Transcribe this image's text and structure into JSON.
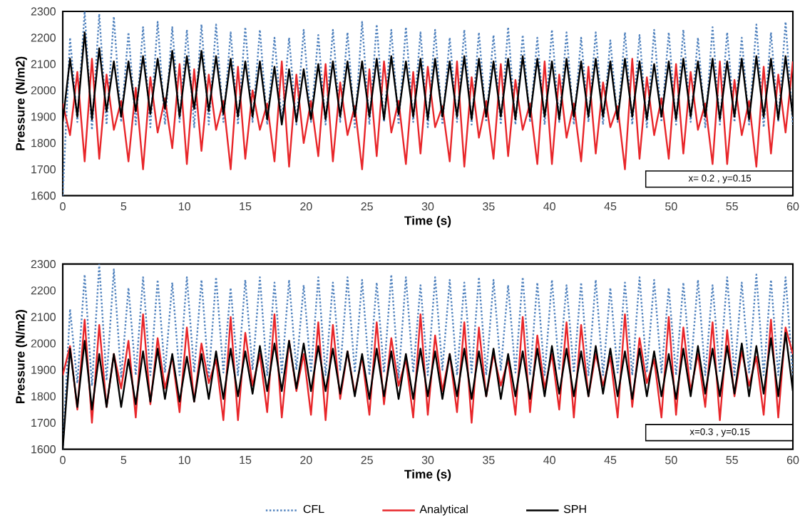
{
  "chart_data": [
    {
      "type": "line",
      "xlabel": "Time (s)",
      "ylabel": "Pressure (N/m2)",
      "annotations": [
        "x= 0.2 , y=0.15"
      ],
      "xlim": [
        0,
        60
      ],
      "ylim": [
        1600,
        2300
      ],
      "xticks": [
        0,
        5,
        10,
        15,
        20,
        25,
        30,
        35,
        40,
        45,
        50,
        55,
        60
      ],
      "yticks": [
        1600,
        1700,
        1800,
        1900,
        2000,
        2100,
        2200,
        2300
      ],
      "grid": false,
      "marker": "none",
      "x": [
        0,
        0.6,
        1.2,
        1.8,
        2.4,
        3,
        3.6,
        4.2,
        4.8,
        5.4,
        6,
        6.6,
        7.2,
        7.8,
        8.4,
        9,
        9.6,
        10.2,
        10.8,
        11.4,
        12,
        12.6,
        13.2,
        13.8,
        14.4,
        15,
        15.6,
        16.2,
        16.8,
        17.4,
        18,
        18.6,
        19.2,
        19.8,
        20.4,
        21,
        21.6,
        22.2,
        22.8,
        23.4,
        24,
        24.6,
        25.2,
        25.8,
        26.4,
        27,
        27.6,
        28.2,
        28.8,
        29.4,
        30,
        30.6,
        31.2,
        31.8,
        32.4,
        33,
        33.6,
        34.2,
        34.8,
        35.4,
        36,
        36.6,
        37.2,
        37.8,
        38.4,
        39,
        39.6,
        40.2,
        40.8,
        41.4,
        42,
        42.6,
        43.2,
        43.8,
        44.4,
        45,
        45.6,
        46.2,
        46.8,
        47.4,
        48,
        48.6,
        49.2,
        49.8,
        50.4,
        51,
        51.6,
        52.2,
        52.8,
        53.4,
        54,
        54.6,
        55.2,
        55.8,
        56.4,
        57,
        57.6,
        58.2,
        58.8,
        59.4,
        60
      ],
      "series": [
        {
          "color": "#4f81bd",
          "line_style": "dotted",
          "values": [
            1600,
            2200,
            1880,
            2300,
            1850,
            2290,
            1870,
            2280,
            1880,
            2220,
            1870,
            2240,
            1860,
            2260,
            1870,
            2240,
            1880,
            2230,
            1860,
            2250,
            1870,
            2250,
            1880,
            2220,
            1870,
            2240,
            1880,
            2230,
            1870,
            2200,
            1880,
            2200,
            1870,
            2230,
            1880,
            2210,
            1870,
            2230,
            1880,
            2220,
            1860,
            2260,
            1870,
            2250,
            1880,
            2230,
            1870,
            2240,
            1880,
            2220,
            1860,
            2230,
            1870,
            2200,
            1880,
            2230,
            1870,
            2220,
            1880,
            2210,
            1870,
            2240,
            1870,
            2210,
            1880,
            2200,
            1870,
            2230,
            1880,
            2220,
            1870,
            2200,
            1880,
            2220,
            1870,
            2190,
            1880,
            2220,
            1870,
            2210,
            1860,
            2230,
            1880,
            2220,
            1870,
            2230,
            1880,
            2200,
            1860,
            2240,
            1870,
            2220,
            1880,
            2200,
            1870,
            2250,
            1860,
            2220,
            1880,
            2260,
            1870
          ]
        },
        {
          "color": "#e8262a",
          "line_style": "solid",
          "values": [
            1950,
            1830,
            2070,
            1730,
            2120,
            1740,
            2060,
            1850,
            1960,
            1730,
            2010,
            1700,
            2050,
            1840,
            1970,
            1780,
            2100,
            1720,
            2080,
            1770,
            2060,
            1850,
            1960,
            1700,
            2090,
            1740,
            2000,
            1850,
            1950,
            1730,
            2110,
            1710,
            2060,
            1800,
            1960,
            1750,
            2100,
            1730,
            2030,
            1830,
            1940,
            1700,
            2080,
            1750,
            2110,
            1840,
            1960,
            1720,
            2070,
            1760,
            2090,
            1860,
            1940,
            1730,
            2110,
            1710,
            2050,
            1820,
            1960,
            1740,
            2100,
            1750,
            2040,
            1850,
            1950,
            1720,
            2110,
            1720,
            2060,
            1820,
            1950,
            1730,
            2090,
            1760,
            2030,
            1860,
            1940,
            1700,
            2120,
            1740,
            2050,
            1830,
            1970,
            1740,
            2100,
            1760,
            2070,
            1850,
            1950,
            1720,
            2110,
            1720,
            2040,
            1830,
            1960,
            1710,
            2090,
            1760,
            2060,
            1840,
            2110
          ]
        },
        {
          "color": "#000000",
          "line_style": "solid",
          "values": [
            1880,
            2120,
            1900,
            2220,
            1890,
            2160,
            1920,
            2110,
            1900,
            2110,
            1920,
            2130,
            1910,
            2120,
            1930,
            2150,
            1900,
            2130,
            1930,
            2150,
            1920,
            2130,
            1910,
            2120,
            1900,
            2110,
            1900,
            2110,
            1890,
            2090,
            1870,
            2080,
            1880,
            2080,
            1890,
            2100,
            1890,
            2110,
            1900,
            2110,
            1900,
            2110,
            1900,
            2120,
            1890,
            2130,
            1910,
            2110,
            1900,
            2120,
            1890,
            2120,
            1900,
            2110,
            1900,
            2130,
            1890,
            2120,
            1900,
            2110,
            1900,
            2120,
            1890,
            2130,
            1900,
            2120,
            1900,
            2110,
            1890,
            2120,
            1900,
            2110,
            1900,
            2120,
            1900,
            2110,
            1890,
            2120,
            1900,
            2110,
            1890,
            2100,
            1900,
            2110,
            1890,
            2120,
            1900,
            2110,
            1900,
            2120,
            1890,
            2110,
            1900,
            2120,
            1890,
            2130,
            1900,
            2120,
            1890,
            2130,
            1900
          ]
        }
      ]
    },
    {
      "type": "line",
      "xlabel": "Time (s)",
      "ylabel": "Pressure (N/m2)",
      "annotations": [
        "x=0.3 , y=0.15"
      ],
      "xlim": [
        0,
        60
      ],
      "ylim": [
        1600,
        2300
      ],
      "xticks": [
        0,
        5,
        10,
        15,
        20,
        25,
        30,
        35,
        40,
        45,
        50,
        55,
        60
      ],
      "yticks": [
        1600,
        1700,
        1800,
        1900,
        2000,
        2100,
        2200,
        2300
      ],
      "grid": false,
      "marker": "none",
      "legend": "bottom",
      "x": [
        0,
        0.6,
        1.2,
        1.8,
        2.4,
        3,
        3.6,
        4.2,
        4.8,
        5.4,
        6,
        6.6,
        7.2,
        7.8,
        8.4,
        9,
        9.6,
        10.2,
        10.8,
        11.4,
        12,
        12.6,
        13.2,
        13.8,
        14.4,
        15,
        15.6,
        16.2,
        16.8,
        17.4,
        18,
        18.6,
        19.2,
        19.8,
        20.4,
        21,
        21.6,
        22.2,
        22.8,
        23.4,
        24,
        24.6,
        25.2,
        25.8,
        26.4,
        27,
        27.6,
        28.2,
        28.8,
        29.4,
        30,
        30.6,
        31.2,
        31.8,
        32.4,
        33,
        33.6,
        34.2,
        34.8,
        35.4,
        36,
        36.6,
        37.2,
        37.8,
        38.4,
        39,
        39.6,
        40.2,
        40.8,
        41.4,
        42,
        42.6,
        43.2,
        43.8,
        44.4,
        45,
        45.6,
        46.2,
        46.8,
        47.4,
        48,
        48.6,
        49.2,
        49.8,
        50.4,
        51,
        51.6,
        52.2,
        52.8,
        53.4,
        54,
        54.6,
        55.2,
        55.8,
        56.4,
        57,
        57.6,
        58.2,
        58.8,
        59.4,
        60
      ],
      "series": [
        {
          "name": "CFL",
          "color": "#4f81bd",
          "line_style": "dotted",
          "values": [
            1600,
            2130,
            1850,
            2260,
            1840,
            2300,
            1860,
            2280,
            1870,
            2210,
            1880,
            2250,
            1880,
            2240,
            1890,
            2230,
            1880,
            2250,
            1890,
            2240,
            1870,
            2250,
            1890,
            2210,
            1880,
            2240,
            1900,
            2250,
            1880,
            2230,
            1890,
            2240,
            1900,
            2220,
            1890,
            2250,
            1880,
            2230,
            1900,
            2250,
            1890,
            2240,
            1880,
            2230,
            1890,
            2260,
            1870,
            2250,
            1890,
            2220,
            1880,
            2250,
            1900,
            2240,
            1880,
            2230,
            1890,
            2250,
            1880,
            2240,
            1900,
            2220,
            1890,
            2250,
            1880,
            2230,
            1880,
            2240,
            1900,
            2220,
            1890,
            2230,
            1880,
            2240,
            1880,
            2210,
            1890,
            2230,
            1880,
            2250,
            1890,
            2240,
            1890,
            2210,
            1880,
            2230,
            1900,
            2240,
            1880,
            2220,
            1890,
            2250,
            1880,
            2230,
            1890,
            2260,
            1880,
            2240,
            1880,
            2250,
            1880
          ]
        },
        {
          "name": "Analytical",
          "color": "#e8262a",
          "line_style": "solid",
          "values": [
            1880,
            1990,
            1750,
            2090,
            1700,
            2070,
            1760,
            1960,
            1830,
            2010,
            1720,
            2110,
            1770,
            2020,
            1830,
            1950,
            1740,
            2060,
            1780,
            2000,
            1850,
            1940,
            1710,
            2100,
            1710,
            2040,
            1840,
            1960,
            1740,
            2110,
            1720,
            2010,
            1820,
            1960,
            1730,
            2080,
            1710,
            2070,
            1790,
            1970,
            1810,
            1950,
            1730,
            2080,
            1770,
            2020,
            1840,
            1940,
            1720,
            2110,
            1730,
            2030,
            1820,
            1960,
            1740,
            2080,
            1700,
            2060,
            1800,
            1960,
            1840,
            1940,
            1730,
            2100,
            1740,
            2030,
            1830,
            1960,
            1750,
            2080,
            1720,
            2070,
            1800,
            1960,
            1840,
            1950,
            1720,
            2110,
            1760,
            2020,
            1850,
            1940,
            1720,
            2100,
            1730,
            2060,
            1820,
            1960,
            1760,
            2080,
            1710,
            2050,
            1800,
            1970,
            1840,
            1950,
            1730,
            2090,
            1720,
            2060,
            1960
          ]
        },
        {
          "name": "SPH",
          "color": "#000000",
          "line_style": "solid",
          "values": [
            1600,
            1980,
            1760,
            2010,
            1750,
            1960,
            1760,
            1960,
            1760,
            1940,
            1770,
            1970,
            1780,
            1980,
            1790,
            1960,
            1780,
            1950,
            1780,
            1960,
            1790,
            1970,
            1790,
            1980,
            1800,
            1970,
            1810,
            1990,
            1820,
            2000,
            1820,
            2010,
            1830,
            2000,
            1820,
            1990,
            1820,
            1980,
            1810,
            1970,
            1800,
            1960,
            1790,
            1980,
            1800,
            1970,
            1790,
            1960,
            1790,
            1980,
            1800,
            1970,
            1790,
            1960,
            1800,
            1980,
            1790,
            1970,
            1800,
            1980,
            1790,
            1960,
            1800,
            1970,
            1790,
            1980,
            1800,
            1990,
            1810,
            1980,
            1800,
            1970,
            1800,
            1990,
            1810,
            1980,
            1800,
            1970,
            1790,
            1980,
            1800,
            1970,
            1800,
            1960,
            1790,
            1980,
            1800,
            1990,
            1810,
            1980,
            1800,
            1990,
            1810,
            2000,
            1800,
            1990,
            1810,
            2020,
            1800,
            2040,
            1820
          ]
        }
      ]
    }
  ]
}
